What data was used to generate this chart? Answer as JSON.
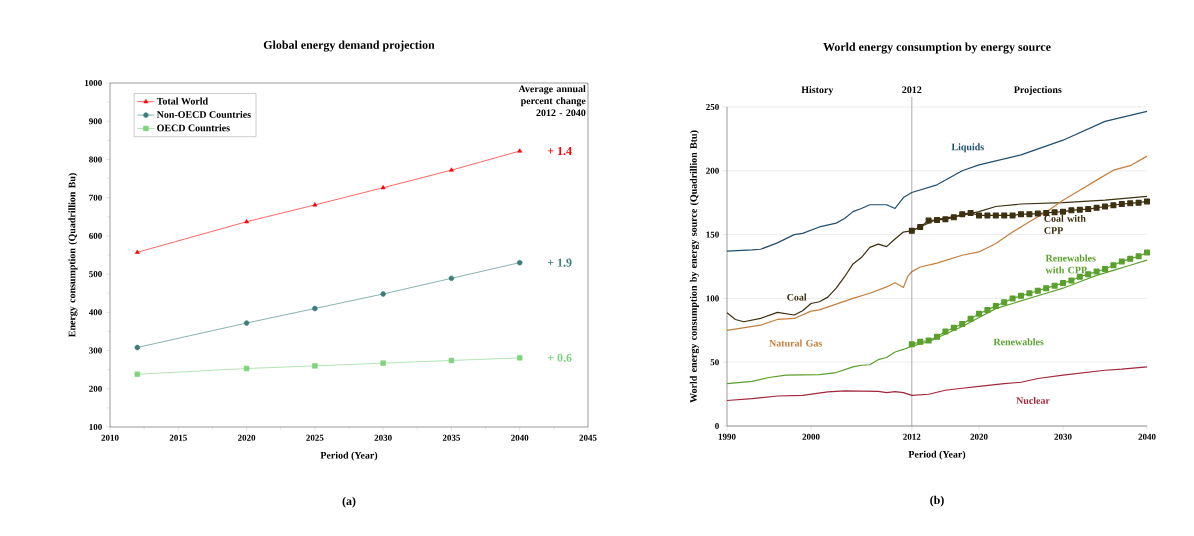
{
  "chart_data": [
    {
      "type": "line",
      "title": "Global energy demand projection",
      "xlabel": "Period (Year)",
      "ylabel": "Energy consumption (Quadrillion Bu)",
      "x": [
        2012,
        2020,
        2025,
        2030,
        2035,
        2040
      ],
      "series": [
        {
          "name": "Total World",
          "color": "#ff0000",
          "marker": "triangle",
          "values": [
            557,
            637,
            681,
            726,
            772,
            822
          ]
        },
        {
          "name": "Non-OECD Countries",
          "color": "#3a7d7c",
          "marker": "circle",
          "values": [
            308,
            372,
            410,
            448,
            489,
            530
          ]
        },
        {
          "name": "OECD Countries",
          "color": "#7fd37f",
          "marker": "square",
          "values": [
            238,
            253,
            260,
            267,
            274,
            281
          ]
        }
      ],
      "xlim": [
        2010,
        2045
      ],
      "xticks": [
        2010,
        2015,
        2020,
        2025,
        2030,
        2035,
        2040,
        2045
      ],
      "ylim": [
        100,
        1000
      ],
      "yticks": [
        100,
        200,
        300,
        400,
        500,
        600,
        700,
        800,
        900,
        1000
      ],
      "legend": "top left",
      "annotations": [
        "Average annual percent change 2012 - 2040",
        "+ 1.4",
        "+ 1.9",
        "+ 0.6",
        "(a)"
      ]
    },
    {
      "type": "line",
      "title": "World energy consumption by energy source",
      "xlabel": "Period (Year)",
      "ylabel": "World energy consumption by energy source (Quadrillion Btu)",
      "series": [
        {
          "name": "Liquids",
          "color": "#1f4e6e",
          "marker": "none",
          "x": [
            1990,
            1993,
            1994,
            1996,
            1998,
            1999,
            2001,
            2003,
            2004,
            2005,
            2006,
            2007,
            2009,
            2010,
            2011,
            2012,
            2015,
            2018,
            2020,
            2025,
            2030,
            2035,
            2040
          ],
          "values": [
            137,
            138,
            138.5,
            143.5,
            150,
            151,
            156,
            159,
            162.6,
            168,
            170.5,
            173.4,
            173.4,
            170.5,
            179,
            183,
            189,
            200,
            204.6,
            212.5,
            224,
            238.7,
            246.6
          ]
        },
        {
          "name": "Coal",
          "color": "#3d3010",
          "marker": "none",
          "x": [
            1990,
            1991,
            1992,
            1994,
            1996,
            1998,
            1999,
            2000,
            2001,
            2002,
            2003,
            2004,
            2005,
            2006,
            2007,
            2008,
            2009,
            2010,
            2011,
            2012,
            2015,
            2018,
            2020,
            2022,
            2025,
            2030,
            2035,
            2040
          ],
          "values": [
            88.7,
            83.5,
            81.7,
            84.3,
            89,
            87,
            90.3,
            96,
            97.4,
            101,
            108,
            117,
            127,
            132,
            140,
            142.5,
            140.6,
            146.6,
            152,
            153,
            162,
            165,
            168,
            172,
            174,
            175,
            177,
            180
          ]
        },
        {
          "name": "Coal with CPP",
          "color": "#3d3010",
          "marker": "square",
          "x": [
            2012,
            2013,
            2014,
            2015,
            2016,
            2017,
            2018,
            2019,
            2020,
            2021,
            2022,
            2023,
            2024,
            2025,
            2026,
            2027,
            2028,
            2029,
            2030,
            2031,
            2032,
            2033,
            2034,
            2035,
            2036,
            2037,
            2038,
            2039,
            2040
          ],
          "values": [
            153,
            156,
            161,
            161.5,
            162,
            163.5,
            166,
            167,
            165,
            165,
            165,
            165,
            165,
            166,
            166,
            166.5,
            167,
            167.5,
            168,
            169,
            169.5,
            170,
            171,
            172,
            173,
            174,
            174.5,
            175,
            176
          ]
        },
        {
          "name": "Natural Gas",
          "color": "#c87d3a",
          "marker": "none",
          "x": [
            1990,
            1992,
            1994,
            1996,
            1998,
            2000,
            2001,
            2003,
            2005,
            2007,
            2009,
            2010,
            2011,
            2011.5,
            2012,
            2013,
            2015,
            2018,
            2020,
            2022,
            2024,
            2026,
            2028,
            2030,
            2032,
            2034,
            2036,
            2038,
            2040
          ],
          "values": [
            75,
            77,
            79,
            83.5,
            84.3,
            90,
            91,
            95.5,
            100,
            104,
            109,
            112.3,
            108.6,
            117,
            121,
            124.6,
            127.7,
            133.8,
            136.4,
            143,
            152,
            160,
            167.8,
            177,
            184.8,
            192.7,
            200.5,
            204,
            211.5
          ]
        },
        {
          "name": "Renewables",
          "color": "#5aa02c",
          "marker": "none",
          "x": [
            1990,
            1993,
            1995,
            1997,
            1999,
            2001,
            2003,
            2005,
            2006,
            2007,
            2008,
            2009,
            2010,
            2011,
            2012,
            2014,
            2016,
            2018,
            2020,
            2022,
            2024,
            2026,
            2028,
            2030,
            2032,
            2034,
            2036,
            2038,
            2040
          ],
          "values": [
            33.2,
            35,
            38,
            39.8,
            40,
            40.3,
            41.9,
            46.3,
            47.6,
            48,
            52,
            53.7,
            58,
            60,
            62.6,
            66,
            72,
            78,
            85,
            92,
            96,
            100,
            104,
            108,
            113,
            118,
            122,
            126,
            130
          ]
        },
        {
          "name": "Renewables with CPP",
          "color": "#5aa02c",
          "marker": "square",
          "x": [
            2012,
            2013,
            2014,
            2015,
            2016,
            2017,
            2018,
            2019,
            2020,
            2021,
            2022,
            2023,
            2024,
            2025,
            2026,
            2027,
            2028,
            2029,
            2030,
            2031,
            2032,
            2033,
            2034,
            2035,
            2036,
            2037,
            2038,
            2039,
            2040
          ],
          "values": [
            64,
            66,
            67,
            70,
            74,
            77,
            80,
            84,
            88,
            91,
            94,
            97,
            100,
            102,
            104,
            106,
            108,
            110,
            112,
            114,
            117,
            119,
            121,
            123,
            126,
            129,
            131,
            133,
            136
          ]
        },
        {
          "name": "Nuclear",
          "color": "#a0283c",
          "marker": "none",
          "x": [
            1990,
            1993,
            1996,
            1999,
            2002,
            2004,
            2008,
            2009,
            2010,
            2011,
            2012,
            2014,
            2016,
            2018,
            2020,
            2023,
            2025,
            2027,
            2030,
            2035,
            2037,
            2040
          ],
          "values": [
            20,
            21.5,
            23.5,
            24,
            26.7,
            27.5,
            27.2,
            26.2,
            27,
            26.2,
            24,
            24.9,
            28,
            29.6,
            31,
            33.2,
            34.3,
            37.2,
            39.8,
            43.7,
            44.5,
            46.3
          ]
        }
      ],
      "xlim": [
        1990,
        2040
      ],
      "xticks": [
        1990,
        2000,
        2012,
        2020,
        2030,
        2040
      ],
      "ylim": [
        0,
        250
      ],
      "yticks": [
        0,
        50,
        100,
        150,
        200,
        250
      ],
      "grid": "y",
      "ref_lines": [
        {
          "axis": "x",
          "value": 2012,
          "label": "2012",
          "color": "#333333"
        }
      ],
      "annotations": [
        "History",
        "Projections",
        "(b)"
      ]
    }
  ]
}
